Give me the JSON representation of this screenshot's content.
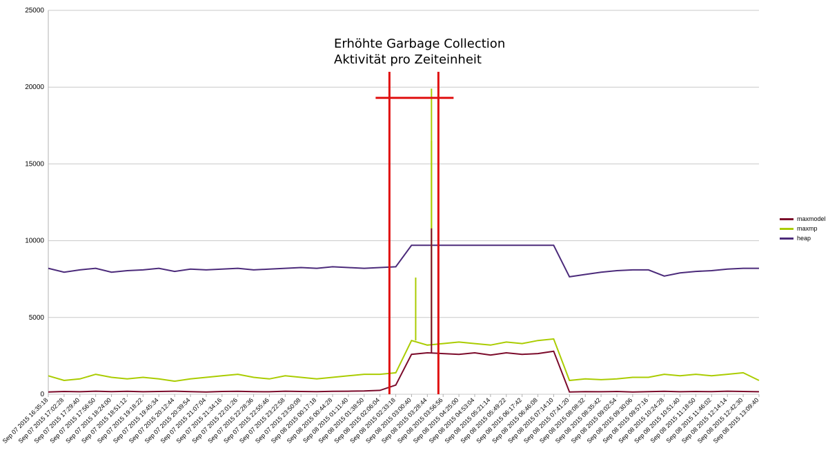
{
  "annotation": {
    "line1": "Erhöhte Garbage Collection",
    "line2": "Aktivität pro Zeiteinheit",
    "color": "#e01010"
  },
  "chart_data": {
    "type": "line",
    "title": "",
    "xlabel": "",
    "ylabel": "",
    "ylim": [
      0,
      25000
    ],
    "yticks": [
      0,
      5000,
      10000,
      15000,
      20000,
      25000
    ],
    "grid": true,
    "legend_position": "right",
    "categories": [
      "Sep 07 2015 16:35:18",
      "Sep 07 2015 17:02:28",
      "Sep 07 2015 17:29:40",
      "Sep 07 2015 17:56:50",
      "Sep 07 2015 18:24:00",
      "Sep 07 2015 18:51:12",
      "Sep 07 2015 19:18:22",
      "Sep 07 2015 19:45:34",
      "Sep 07 2015 20:12:44",
      "Sep 07 2015 20:39:54",
      "Sep 07 2015 21:07:04",
      "Sep 07 2015 21:34:16",
      "Sep 07 2015 22:01:26",
      "Sep 07 2015 22:28:36",
      "Sep 07 2015 22:55:46",
      "Sep 07 2015 23:22:58",
      "Sep 07 2015 23:50:08",
      "Sep 08 2015 00:17:18",
      "Sep 08 2015 00:44:28",
      "Sep 08 2015 01:11:40",
      "Sep 08 2015 01:38:50",
      "Sep 08 2015 02:06:04",
      "Sep 08 2015 02:33:18",
      "Sep 08 2015 03:00:40",
      "Sep 08 2015 03:28:44",
      "Sep 08 2015 03:56:56",
      "Sep 08 2015 04:25:00",
      "Sep 08 2015 04:53:04",
      "Sep 08 2015 05:21:14",
      "Sep 08 2015 05:49:22",
      "Sep 08 2015 06:17:42",
      "Sep 08 2015 06:46:08",
      "Sep 08 2015 07:14:10",
      "Sep 08 2015 07:41:20",
      "Sep 08 2015 08:08:32",
      "Sep 08 2015 08:35:42",
      "Sep 08 2015 09:02:54",
      "Sep 08 2015 09:30:06",
      "Sep 08 2015 09:57:16",
      "Sep 08 2015 10:24:28",
      "Sep 08 2015 10:51:40",
      "Sep 08 2015 11:18:50",
      "Sep 08 2015 11:46:02",
      "Sep 08 2015 12:14:14",
      "Sep 08 2015 12:42:30",
      "Sep 08 2015 13:09:40"
    ],
    "series": [
      {
        "name": "maxmodel",
        "color": "#7b0a2a",
        "values": [
          150,
          180,
          160,
          200,
          170,
          190,
          160,
          180,
          200,
          170,
          150,
          180,
          190,
          170,
          160,
          200,
          180,
          170,
          190,
          200,
          210,
          250,
          600,
          2600,
          2700,
          2650,
          2600,
          2700,
          2550,
          2700,
          2600,
          2650,
          2800,
          150,
          170,
          160,
          180,
          150,
          170,
          190,
          160,
          180,
          170,
          200,
          180,
          160
        ]
      },
      {
        "name": "maxmp",
        "color": "#aacc00",
        "values": [
          1200,
          900,
          1000,
          1300,
          1100,
          1000,
          1100,
          1000,
          850,
          1000,
          1100,
          1200,
          1300,
          1100,
          1000,
          1200,
          1100,
          1000,
          1100,
          1200,
          1300,
          1300,
          1400,
          3500,
          3200,
          3300,
          3400,
          3300,
          3200,
          3400,
          3300,
          3500,
          3600,
          900,
          1000,
          950,
          1000,
          1100,
          1100,
          1300,
          1200,
          1300,
          1200,
          1300,
          1400,
          900
        ]
      },
      {
        "name": "heap",
        "color": "#4b2a7a",
        "values": [
          8200,
          7950,
          8100,
          8200,
          7950,
          8050,
          8100,
          8200,
          8000,
          8150,
          8100,
          8150,
          8200,
          8100,
          8150,
          8200,
          8250,
          8200,
          8300,
          8250,
          8200,
          8250,
          8300,
          9700,
          9700,
          9700,
          9700,
          9700,
          9700,
          9700,
          9700,
          9700,
          9700,
          7650,
          7800,
          7950,
          8050,
          8100,
          8100,
          7700,
          7900,
          8000,
          8050,
          8150,
          8200,
          8200
        ]
      }
    ],
    "spikes": [
      {
        "series": "maxmp",
        "x_index": 24,
        "value": 19900
      },
      {
        "series": "maxmp",
        "x_index": 24,
        "value": 16500
      },
      {
        "series": "maxmodel",
        "x_index": 24,
        "value": 10800
      },
      {
        "series": "maxmp",
        "x_index": 23,
        "value": 7600
      }
    ]
  }
}
